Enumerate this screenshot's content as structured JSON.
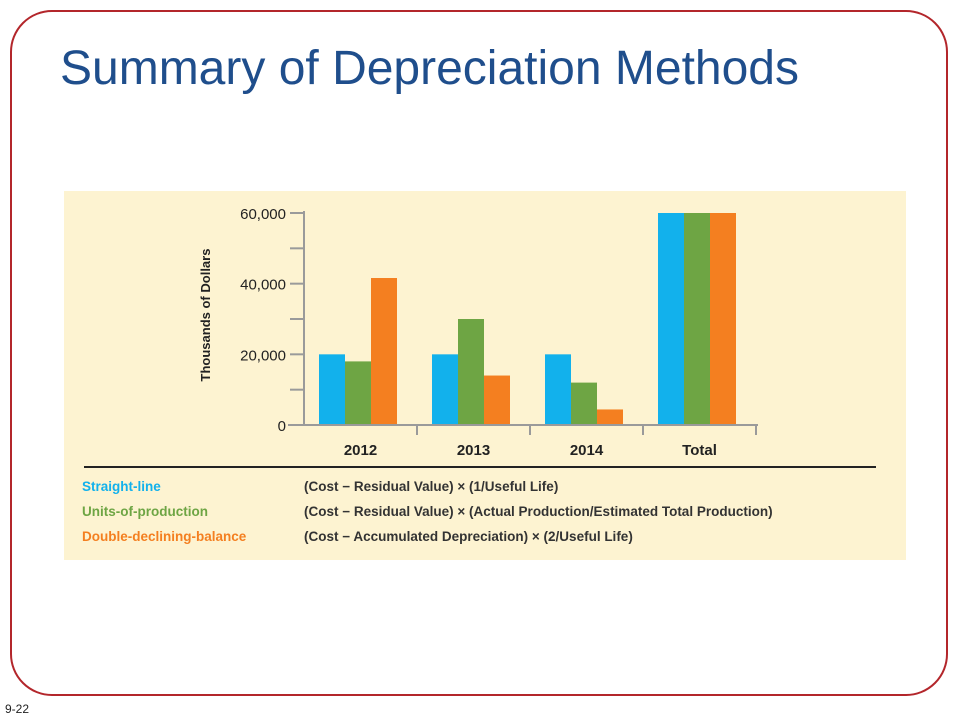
{
  "slide": {
    "title": "Summary of Depreciation Methods",
    "number": "9-22"
  },
  "colors": {
    "frame": "#b3262b",
    "title": "#1f4e8c",
    "panel_background": "#fdf3d1"
  },
  "chart_data": {
    "type": "bar",
    "categories": [
      "2012",
      "2013",
      "2014",
      "Total"
    ],
    "series": [
      {
        "name": "Straight-line",
        "color": "#12b1ec",
        "values": [
          20000,
          20000,
          20000,
          60000
        ]
      },
      {
        "name": "Units-of-production",
        "color": "#6ea544",
        "values": [
          18000,
          30000,
          12000,
          60000
        ]
      },
      {
        "name": "Double-declining-balance",
        "color": "#f47f20",
        "values": [
          41600,
          14000,
          4400,
          60000
        ]
      }
    ],
    "ylabel": "Thousands of Dollars",
    "ylim": [
      0,
      60000
    ],
    "yticks": [
      "0",
      "20,000",
      "40,000",
      "60,000"
    ],
    "grid": false
  },
  "legend": [
    {
      "name": "Straight-line",
      "formula": "(Cost − Residual Value) × (1/Useful Life)",
      "color": "#12b1ec"
    },
    {
      "name": "Units-of-production",
      "formula": "(Cost − Residual Value) × (Actual Production/Estimated Total Production)",
      "color": "#6ea544"
    },
    {
      "name": "Double-declining-balance",
      "formula": "(Cost − Accumulated Depreciation) × (2/Useful Life)",
      "color": "#f47f20"
    }
  ]
}
